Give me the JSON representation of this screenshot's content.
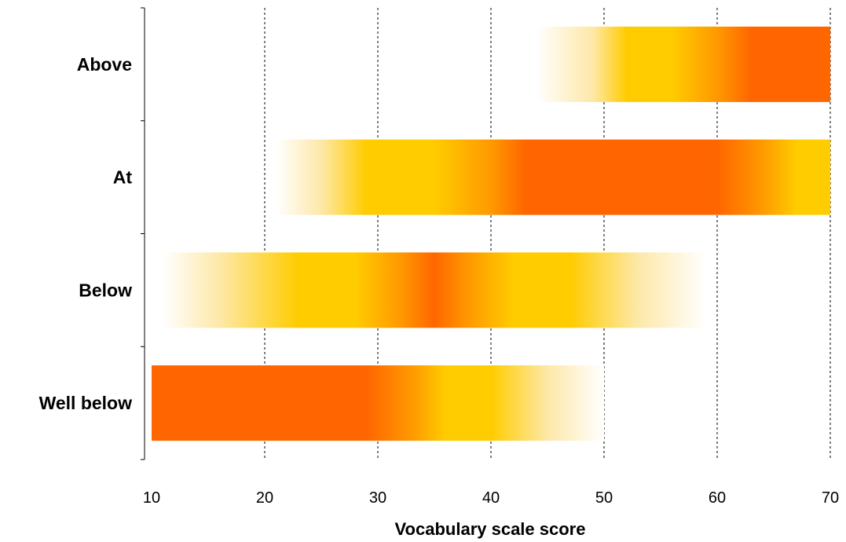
{
  "chart_data": {
    "type": "bar",
    "orientation": "horizontal",
    "title": "",
    "xlabel": "Vocabulary scale score",
    "ylabel": "",
    "xlim": [
      10,
      70
    ],
    "xticks": [
      10,
      20,
      30,
      40,
      50,
      60,
      70
    ],
    "xtick_labels": [
      "10",
      "20",
      "30",
      "40",
      "50",
      "60",
      "70"
    ],
    "grid": "vertical dashed lines at x ticks",
    "categories": [
      "Above",
      "At",
      "Below",
      "Well below"
    ],
    "bars": [
      {
        "category": "Above",
        "start": 44,
        "end": 70,
        "gradient": [
          {
            "value": 44,
            "color": "#FFFFFF"
          },
          {
            "value": 49,
            "color": "#FDE8A8"
          },
          {
            "value": 52,
            "color": "#FFCC00"
          },
          {
            "value": 56,
            "color": "#FFCC00"
          },
          {
            "value": 60,
            "color": "#FF9900"
          },
          {
            "value": 63,
            "color": "#FF6600"
          },
          {
            "value": 70,
            "color": "#FF6600"
          }
        ]
      },
      {
        "category": "At",
        "start": 21,
        "end": 70,
        "gradient": [
          {
            "value": 21,
            "color": "#FFFFFF"
          },
          {
            "value": 25,
            "color": "#FDE8A8"
          },
          {
            "value": 29,
            "color": "#FFCC00"
          },
          {
            "value": 35,
            "color": "#FFCC00"
          },
          {
            "value": 40,
            "color": "#FF9900"
          },
          {
            "value": 43,
            "color": "#FF6600"
          },
          {
            "value": 60,
            "color": "#FF6600"
          },
          {
            "value": 64,
            "color": "#FF9900"
          },
          {
            "value": 67,
            "color": "#FFCC00"
          },
          {
            "value": 70,
            "color": "#FFCC00"
          }
        ]
      },
      {
        "category": "Below",
        "start": 11,
        "end": 59,
        "gradient": [
          {
            "value": 11,
            "color": "#FFFFFF"
          },
          {
            "value": 16,
            "color": "#FDE8A8"
          },
          {
            "value": 23,
            "color": "#FFCC00"
          },
          {
            "value": 28,
            "color": "#FFCC00"
          },
          {
            "value": 32,
            "color": "#FF9900"
          },
          {
            "value": 35,
            "color": "#FF6600"
          },
          {
            "value": 38,
            "color": "#FF9900"
          },
          {
            "value": 42,
            "color": "#FFCC00"
          },
          {
            "value": 47,
            "color": "#FFCC00"
          },
          {
            "value": 53,
            "color": "#FDE8A8"
          },
          {
            "value": 59,
            "color": "#FFFFFF"
          }
        ]
      },
      {
        "category": "Well below",
        "start": 10,
        "end": 50,
        "gradient": [
          {
            "value": 10,
            "color": "#FF6600"
          },
          {
            "value": 29,
            "color": "#FF6600"
          },
          {
            "value": 33,
            "color": "#FF9900"
          },
          {
            "value": 36,
            "color": "#FFCC00"
          },
          {
            "value": 40,
            "color": "#FFCC00"
          },
          {
            "value": 45,
            "color": "#FDE8A8"
          },
          {
            "value": 50,
            "color": "#FFFFFF"
          }
        ]
      }
    ]
  }
}
